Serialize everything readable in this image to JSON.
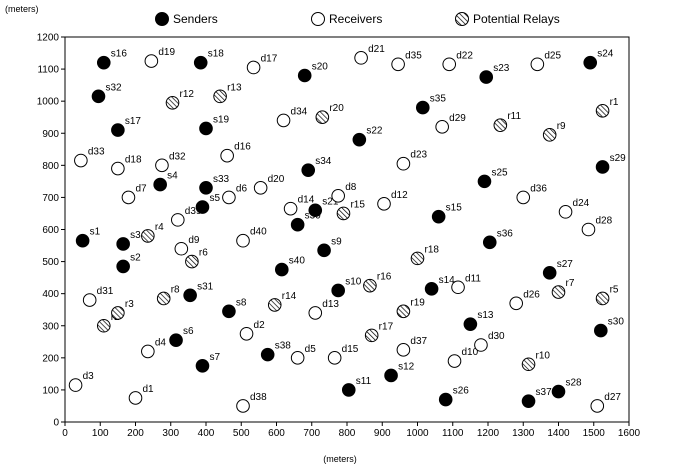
{
  "chart_data": {
    "type": "scatter",
    "xlabel": "(meters)",
    "ylabel": "(meters)",
    "xlim": [
      0,
      1600
    ],
    "ylim": [
      0,
      1200
    ],
    "xticks": [
      0,
      100,
      200,
      300,
      400,
      500,
      600,
      700,
      800,
      900,
      1000,
      1100,
      1200,
      1300,
      1400,
      1500,
      1600
    ],
    "yticks": [
      0,
      100,
      200,
      300,
      400,
      500,
      600,
      700,
      800,
      900,
      1000,
      1100,
      1200
    ],
    "legend": [
      {
        "key": "senders",
        "label": "Senders"
      },
      {
        "key": "receivers",
        "label": "Receivers"
      },
      {
        "key": "relays",
        "label": "Potential Relays"
      }
    ],
    "series": [
      {
        "name": "Senders",
        "key": "senders",
        "points": [
          {
            "label": "s1",
            "x": 50,
            "y": 565
          },
          {
            "label": "s2",
            "x": 165,
            "y": 485
          },
          {
            "label": "s3",
            "x": 165,
            "y": 555
          },
          {
            "label": "s4",
            "x": 270,
            "y": 740
          },
          {
            "label": "s5",
            "x": 390,
            "y": 670
          },
          {
            "label": "s6",
            "x": 315,
            "y": 255
          },
          {
            "label": "s7",
            "x": 390,
            "y": 175
          },
          {
            "label": "s8",
            "x": 465,
            "y": 345
          },
          {
            "label": "s9",
            "x": 735,
            "y": 535
          },
          {
            "label": "s10",
            "x": 775,
            "y": 410
          },
          {
            "label": "s11",
            "x": 805,
            "y": 100
          },
          {
            "label": "s12",
            "x": 925,
            "y": 145
          },
          {
            "label": "s13",
            "x": 1150,
            "y": 305
          },
          {
            "label": "s14",
            "x": 1040,
            "y": 415
          },
          {
            "label": "s15",
            "x": 1060,
            "y": 640
          },
          {
            "label": "s16",
            "x": 110,
            "y": 1120
          },
          {
            "label": "s17",
            "x": 150,
            "y": 910
          },
          {
            "label": "s18",
            "x": 385,
            "y": 1120
          },
          {
            "label": "s19",
            "x": 400,
            "y": 915
          },
          {
            "label": "s20",
            "x": 680,
            "y": 1080
          },
          {
            "label": "s21",
            "x": 710,
            "y": 660
          },
          {
            "label": "s22",
            "x": 835,
            "y": 880
          },
          {
            "label": "s23",
            "x": 1195,
            "y": 1075
          },
          {
            "label": "s24",
            "x": 1490,
            "y": 1120
          },
          {
            "label": "s25",
            "x": 1190,
            "y": 750
          },
          {
            "label": "s26",
            "x": 1080,
            "y": 70
          },
          {
            "label": "s27",
            "x": 1375,
            "y": 465
          },
          {
            "label": "s28",
            "x": 1400,
            "y": 95
          },
          {
            "label": "s29",
            "x": 1525,
            "y": 795
          },
          {
            "label": "s30",
            "x": 1520,
            "y": 285
          },
          {
            "label": "s31",
            "x": 355,
            "y": 395
          },
          {
            "label": "s32",
            "x": 95,
            "y": 1015
          },
          {
            "label": "s33",
            "x": 400,
            "y": 730
          },
          {
            "label": "s34",
            "x": 690,
            "y": 785
          },
          {
            "label": "s35",
            "x": 1015,
            "y": 980
          },
          {
            "label": "s36",
            "x": 1205,
            "y": 560
          },
          {
            "label": "s37",
            "x": 1315,
            "y": 65
          },
          {
            "label": "s38",
            "x": 575,
            "y": 210
          },
          {
            "label": "s39",
            "x": 660,
            "y": 615
          },
          {
            "label": "s40",
            "x": 615,
            "y": 475
          }
        ]
      },
      {
        "name": "Receivers",
        "key": "receivers",
        "points": [
          {
            "label": "d1",
            "x": 200,
            "y": 75
          },
          {
            "label": "d2",
            "x": 515,
            "y": 275
          },
          {
            "label": "d3",
            "x": 30,
            "y": 115
          },
          {
            "label": "d4",
            "x": 235,
            "y": 220
          },
          {
            "label": "d5",
            "x": 660,
            "y": 200
          },
          {
            "label": "d6",
            "x": 465,
            "y": 700
          },
          {
            "label": "d7",
            "x": 180,
            "y": 700
          },
          {
            "label": "d8",
            "x": 775,
            "y": 705
          },
          {
            "label": "d9",
            "x": 330,
            "y": 540
          },
          {
            "label": "d10",
            "x": 1105,
            "y": 190
          },
          {
            "label": "d11",
            "x": 1115,
            "y": 420
          },
          {
            "label": "d12",
            "x": 905,
            "y": 680
          },
          {
            "label": "d13",
            "x": 710,
            "y": 340
          },
          {
            "label": "d14",
            "x": 640,
            "y": 665
          },
          {
            "label": "d15",
            "x": 765,
            "y": 200
          },
          {
            "label": "d16",
            "x": 460,
            "y": 830
          },
          {
            "label": "d17",
            "x": 535,
            "y": 1105
          },
          {
            "label": "d18",
            "x": 150,
            "y": 790
          },
          {
            "label": "d19",
            "x": 245,
            "y": 1125
          },
          {
            "label": "d20",
            "x": 555,
            "y": 730
          },
          {
            "label": "d21",
            "x": 840,
            "y": 1135
          },
          {
            "label": "d22",
            "x": 1090,
            "y": 1115
          },
          {
            "label": "d23",
            "x": 960,
            "y": 805
          },
          {
            "label": "d24",
            "x": 1420,
            "y": 655
          },
          {
            "label": "d25",
            "x": 1340,
            "y": 1115
          },
          {
            "label": "d26",
            "x": 1280,
            "y": 370
          },
          {
            "label": "d27",
            "x": 1510,
            "y": 50
          },
          {
            "label": "d28",
            "x": 1485,
            "y": 600
          },
          {
            "label": "d29",
            "x": 1070,
            "y": 920
          },
          {
            "label": "d30",
            "x": 1180,
            "y": 240
          },
          {
            "label": "d31",
            "x": 70,
            "y": 380
          },
          {
            "label": "d32",
            "x": 275,
            "y": 800
          },
          {
            "label": "d33",
            "x": 45,
            "y": 815
          },
          {
            "label": "d34",
            "x": 620,
            "y": 940
          },
          {
            "label": "d35",
            "x": 945,
            "y": 1115
          },
          {
            "label": "d36",
            "x": 1300,
            "y": 700
          },
          {
            "label": "d37",
            "x": 960,
            "y": 225
          },
          {
            "label": "d38",
            "x": 505,
            "y": 50
          },
          {
            "label": "d39",
            "x": 320,
            "y": 630
          },
          {
            "label": "d40",
            "x": 505,
            "y": 565
          }
        ]
      },
      {
        "name": "Potential Relays",
        "key": "relays",
        "points": [
          {
            "label": "r1",
            "x": 1525,
            "y": 970
          },
          {
            "label": "r2",
            "x": 110,
            "y": 300
          },
          {
            "label": "r3",
            "x": 150,
            "y": 340
          },
          {
            "label": "r4",
            "x": 235,
            "y": 580
          },
          {
            "label": "r5",
            "x": 1525,
            "y": 385
          },
          {
            "label": "r6",
            "x": 360,
            "y": 500
          },
          {
            "label": "r7",
            "x": 1400,
            "y": 405
          },
          {
            "label": "r8",
            "x": 280,
            "y": 385
          },
          {
            "label": "r9",
            "x": 1375,
            "y": 895
          },
          {
            "label": "r10",
            "x": 1315,
            "y": 180
          },
          {
            "label": "r11",
            "x": 1235,
            "y": 925
          },
          {
            "label": "r12",
            "x": 305,
            "y": 995
          },
          {
            "label": "r13",
            "x": 440,
            "y": 1015
          },
          {
            "label": "r14",
            "x": 595,
            "y": 365
          },
          {
            "label": "r15",
            "x": 790,
            "y": 650
          },
          {
            "label": "r16",
            "x": 865,
            "y": 425
          },
          {
            "label": "r17",
            "x": 870,
            "y": 270
          },
          {
            "label": "r18",
            "x": 1000,
            "y": 510
          },
          {
            "label": "r19",
            "x": 960,
            "y": 345
          },
          {
            "label": "r20",
            "x": 730,
            "y": 950
          }
        ]
      }
    ]
  }
}
